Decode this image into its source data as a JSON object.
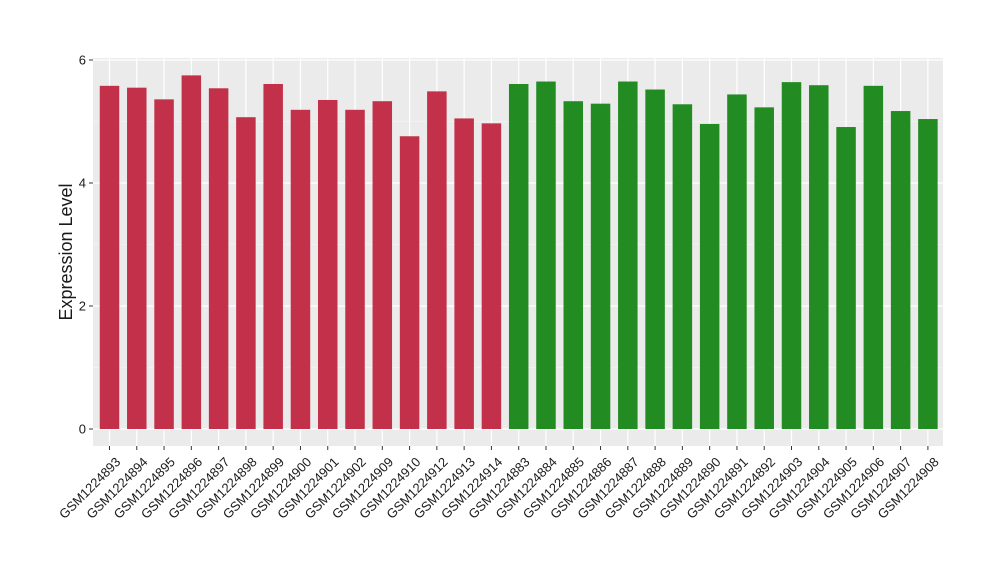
{
  "chart_data": {
    "type": "bar",
    "ylabel": "Expression Level",
    "xlabel": "",
    "ylim": [
      0,
      6.0
    ],
    "yticks": [
      0,
      2,
      4,
      6
    ],
    "grid": true,
    "panel_background": "#ebebeb",
    "group_colors": [
      "#c3304a",
      "#228b22"
    ],
    "categories": [
      "GSM1224893",
      "GSM1224894",
      "GSM1224895",
      "GSM1224896",
      "GSM1224897",
      "GSM1224898",
      "GSM1224899",
      "GSM1224900",
      "GSM1224901",
      "GSM1224902",
      "GSM1224909",
      "GSM1224910",
      "GSM1224912",
      "GSM1224913",
      "GSM1224914",
      "GSM1224883",
      "GSM1224884",
      "GSM1224885",
      "GSM1224886",
      "GSM1224887",
      "GSM1224888",
      "GSM1224889",
      "GSM1224890",
      "GSM1224891",
      "GSM1224892",
      "GSM1224903",
      "GSM1224904",
      "GSM1224905",
      "GSM1224906",
      "GSM1224907",
      "GSM1224908"
    ],
    "values": [
      5.58,
      5.55,
      5.36,
      5.75,
      5.54,
      5.07,
      5.61,
      5.19,
      5.35,
      5.19,
      5.33,
      4.76,
      5.49,
      5.05,
      4.97,
      5.61,
      5.65,
      5.33,
      5.29,
      5.65,
      5.52,
      5.28,
      4.96,
      5.44,
      5.23,
      5.64,
      5.59,
      4.91,
      5.58,
      5.17,
      5.04
    ],
    "group_index": [
      0,
      0,
      0,
      0,
      0,
      0,
      0,
      0,
      0,
      0,
      0,
      0,
      0,
      0,
      0,
      1,
      1,
      1,
      1,
      1,
      1,
      1,
      1,
      1,
      1,
      1,
      1,
      1,
      1,
      1,
      1
    ]
  }
}
